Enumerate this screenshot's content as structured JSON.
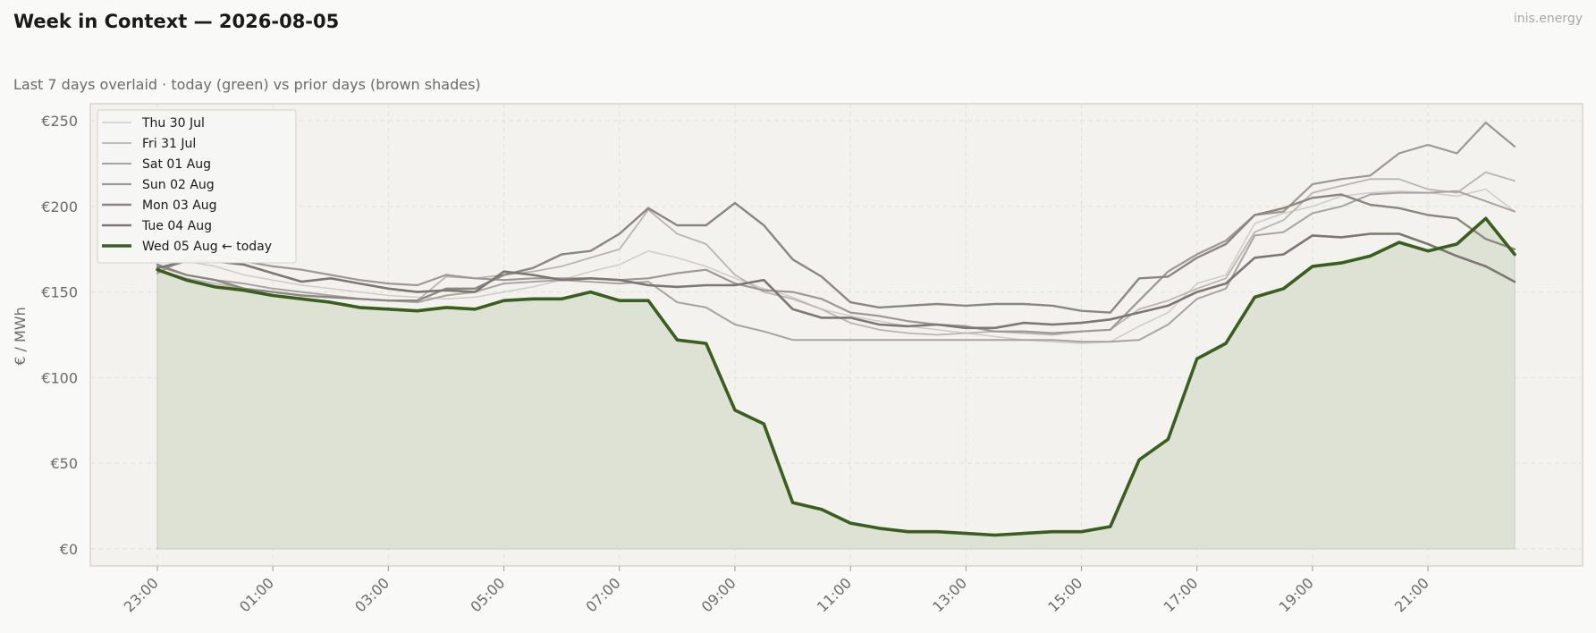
{
  "header": {
    "title": "Week in Context — 2026-08-05",
    "brand": "inis.energy",
    "subtitle": "Last 7 days overlaid  ·  today (green) vs prior days (brown shades)"
  },
  "colors": {
    "today": "#3a5e1e",
    "today_fill": "#dde2d4",
    "plot_bg": "#f3f2ee",
    "grid": "#e2e1dc",
    "axis_border": "#cfcdc8"
  },
  "chart_data": {
    "type": "line",
    "ylabel": "€ / MWh",
    "ylim": [
      -10,
      260
    ],
    "yticks": [
      0,
      50,
      100,
      150,
      200,
      250
    ],
    "ytick_labels": [
      "€0",
      "€50",
      "€100",
      "€150",
      "€200",
      "€250"
    ],
    "x": [
      "23:00",
      "23:30",
      "00:00",
      "00:30",
      "01:00",
      "01:30",
      "02:00",
      "02:30",
      "03:00",
      "03:30",
      "04:00",
      "04:30",
      "05:00",
      "05:30",
      "06:00",
      "06:30",
      "07:00",
      "07:30",
      "08:00",
      "08:30",
      "09:00",
      "09:30",
      "10:00",
      "10:30",
      "11:00",
      "11:30",
      "12:00",
      "12:30",
      "13:00",
      "13:30",
      "14:00",
      "14:30",
      "15:00",
      "15:30",
      "16:00",
      "16:30",
      "17:00",
      "17:30",
      "18:00",
      "18:30",
      "19:00",
      "19:30",
      "20:00",
      "20:30",
      "21:00",
      "21:30",
      "22:00",
      "22:30"
    ],
    "xtick_labels": [
      "23:00",
      "01:00",
      "03:00",
      "05:00",
      "07:00",
      "09:00",
      "11:00",
      "13:00",
      "15:00",
      "17:00",
      "19:00",
      "21:00"
    ],
    "legend_position": "top-left",
    "series": [
      {
        "name": "Thu 30 Jul",
        "color": "#cfcbc8",
        "width": 1.5,
        "values": [
          162,
          168,
          165,
          160,
          157,
          154,
          152,
          150,
          148,
          147,
          146,
          147,
          150,
          153,
          157,
          162,
          166,
          174,
          170,
          165,
          158,
          152,
          147,
          140,
          136,
          133,
          130,
          128,
          126,
          124,
          122,
          121,
          120,
          121,
          130,
          138,
          155,
          160,
          190,
          196,
          200,
          206,
          208,
          209,
          208,
          206,
          210,
          197
        ]
      },
      {
        "name": "Fri 31 Jul",
        "color": "#bab5b2",
        "width": 1.8,
        "values": [
          163,
          158,
          155,
          152,
          150,
          148,
          147,
          146,
          145,
          145,
          159,
          158,
          160,
          162,
          165,
          170,
          175,
          198,
          184,
          178,
          160,
          150,
          146,
          140,
          132,
          128,
          126,
          125,
          126,
          127,
          126,
          125,
          127,
          128,
          140,
          145,
          152,
          158,
          185,
          192,
          208,
          212,
          216,
          216,
          210,
          208,
          220,
          215
        ]
      },
      {
        "name": "Sat 01 Aug",
        "color": "#a9a3a0",
        "width": 2.0,
        "values": [
          165,
          160,
          157,
          155,
          152,
          150,
          148,
          146,
          145,
          144,
          148,
          150,
          155,
          156,
          157,
          156,
          155,
          156,
          144,
          141,
          131,
          127,
          122,
          122,
          122,
          122,
          122,
          122,
          122,
          122,
          122,
          122,
          121,
          121,
          122,
          131,
          146,
          152,
          183,
          185,
          196,
          200,
          207,
          208,
          208,
          209,
          203,
          197
        ]
      },
      {
        "name": "Sun 02 Aug",
        "color": "#9d9795",
        "width": 2.2,
        "values": [
          161,
          170,
          172,
          168,
          165,
          163,
          160,
          157,
          155,
          154,
          160,
          158,
          157,
          158,
          158,
          158,
          157,
          158,
          161,
          163,
          155,
          151,
          150,
          146,
          138,
          136,
          133,
          131,
          130,
          127,
          127,
          126,
          127,
          128,
          145,
          162,
          172,
          180,
          195,
          197,
          213,
          216,
          218,
          231,
          236,
          231,
          249,
          235
        ]
      },
      {
        "name": "Mon 03 Aug",
        "color": "#8c8683",
        "width": 2.4,
        "values": [
          166,
          160,
          157,
          152,
          150,
          148,
          147,
          146,
          145,
          145,
          152,
          152,
          160,
          164,
          172,
          174,
          184,
          199,
          189,
          189,
          202,
          189,
          169,
          159,
          144,
          141,
          142,
          143,
          142,
          143,
          143,
          142,
          139,
          138,
          158,
          159,
          170,
          178,
          195,
          199,
          205,
          207,
          201,
          199,
          195,
          193,
          181,
          175
        ]
      },
      {
        "name": "Tue 04 Aug",
        "color": "#7d7774",
        "width": 2.6,
        "values": [
          164,
          168,
          168,
          166,
          161,
          156,
          158,
          155,
          152,
          150,
          151,
          150,
          162,
          160,
          157,
          158,
          157,
          154,
          153,
          154,
          154,
          157,
          140,
          135,
          135,
          131,
          130,
          131,
          129,
          129,
          132,
          131,
          132,
          134,
          138,
          142,
          150,
          155,
          170,
          172,
          183,
          182,
          184,
          184,
          178,
          171,
          165,
          156
        ]
      },
      {
        "name": "Wed 05 Aug  ← today",
        "color": "#3a5e1e",
        "width": 3.6,
        "today": true,
        "values": [
          163,
          157,
          153,
          151,
          148,
          146,
          144,
          141,
          140,
          139,
          141,
          140,
          145,
          146,
          146,
          150,
          145,
          145,
          122,
          120,
          81,
          73,
          27,
          23,
          15,
          12,
          10,
          10,
          9,
          8,
          9,
          10,
          10,
          13,
          52,
          64,
          111,
          120,
          147,
          152,
          165,
          167,
          171,
          179,
          174,
          178,
          193,
          172
        ]
      }
    ]
  }
}
